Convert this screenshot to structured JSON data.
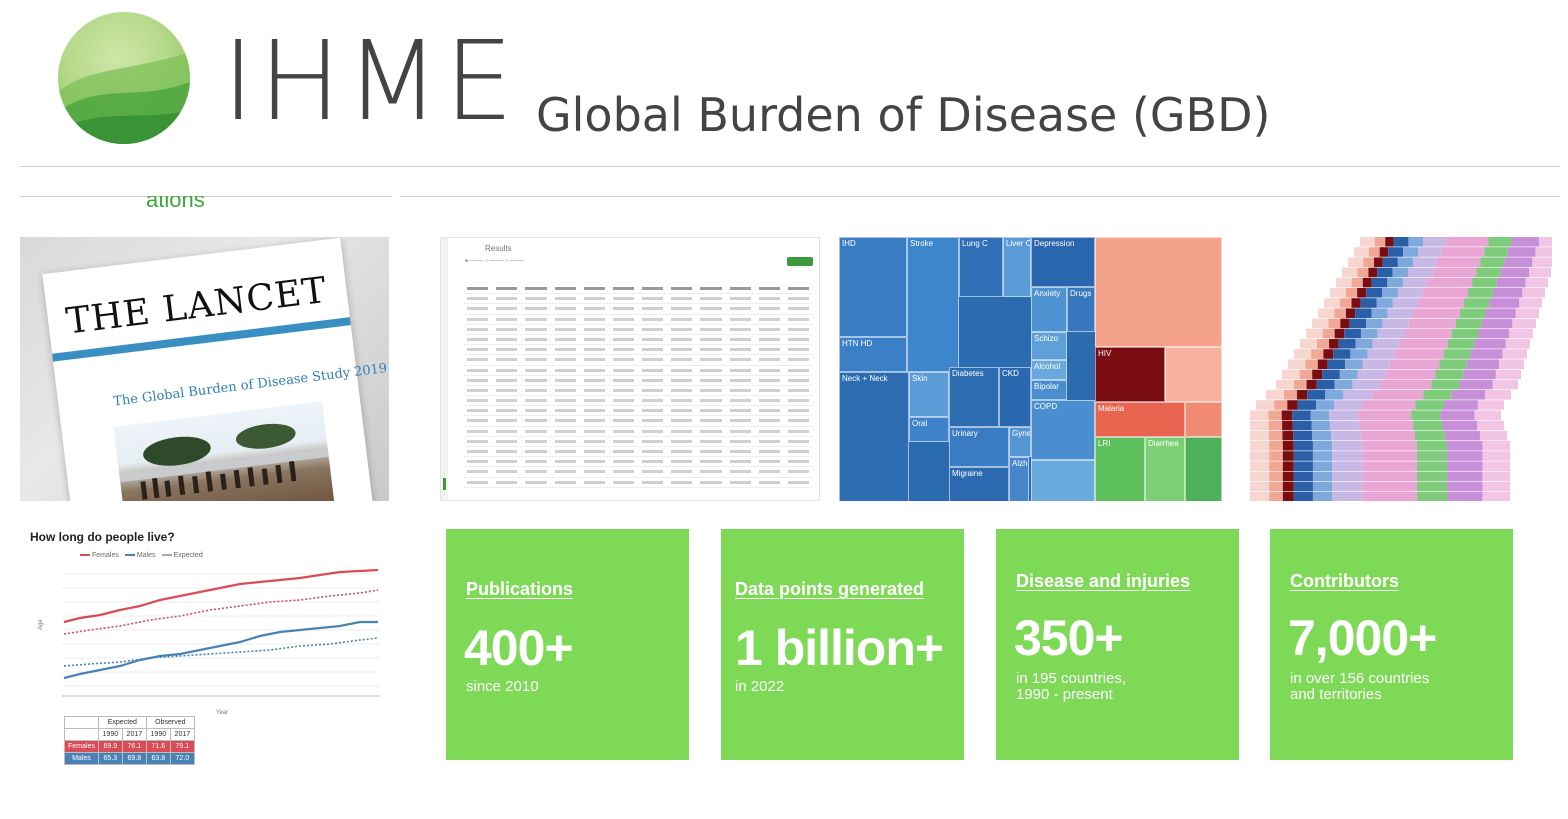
{
  "header": {
    "logo_text": "IHME",
    "title": "Global Burden of Disease (GBD)",
    "cut_text": "ations"
  },
  "lancet": {
    "name": "THE LANCET",
    "study_title": "The Global Burden of Disease Study 2019"
  },
  "results_card": {
    "title": "Results"
  },
  "treemap": {
    "labels": [
      "IHD",
      "Stroke",
      "Lung C",
      "Liver C",
      "Depression",
      "Anxiety",
      "Drugs",
      "Schizo",
      "Alcohol",
      "Bipolar",
      "HTN HD",
      "CKD",
      "COPD",
      "Diabetes",
      "Skin",
      "Oral",
      "Neck + Neck",
      "Urinary",
      "Gyne",
      "Migraine",
      "Alzheimer",
      "HIV",
      "Malaria",
      "LRI",
      "Diarrhea"
    ]
  },
  "life_chart": {
    "title": "How long do people live?",
    "legend": [
      "Females",
      "Males",
      "Expected"
    ],
    "xlabel": "Year",
    "ylabel": "Age",
    "table": {
      "group_headers": [
        "Expected",
        "Observed"
      ],
      "years": [
        "1990",
        "2017",
        "1990",
        "2017"
      ],
      "rows": [
        {
          "label": "Females",
          "values": [
            "69.9",
            "76.1",
            "71.6",
            "79.1"
          ]
        },
        {
          "label": "Males",
          "values": [
            "65.3",
            "69.8",
            "63.8",
            "72.0"
          ]
        }
      ]
    }
  },
  "stats": [
    {
      "label": "Publications",
      "value": "400+",
      "desc": "since 2010"
    },
    {
      "label": "Data points generated",
      "value": "1 billion+",
      "desc": "in 2022"
    },
    {
      "label": "Disease and injuries",
      "value": "350+",
      "desc": "in 195 countries,\n1990 - present"
    },
    {
      "label": "Contributors",
      "value": "7,000+",
      "desc": "in over 156 countries\nand territories"
    }
  ],
  "colors": {
    "stat_green": "#7ed957",
    "brand_green": "#39a83a",
    "female_red": "#d94b55",
    "male_blue": "#4a82b5"
  }
}
